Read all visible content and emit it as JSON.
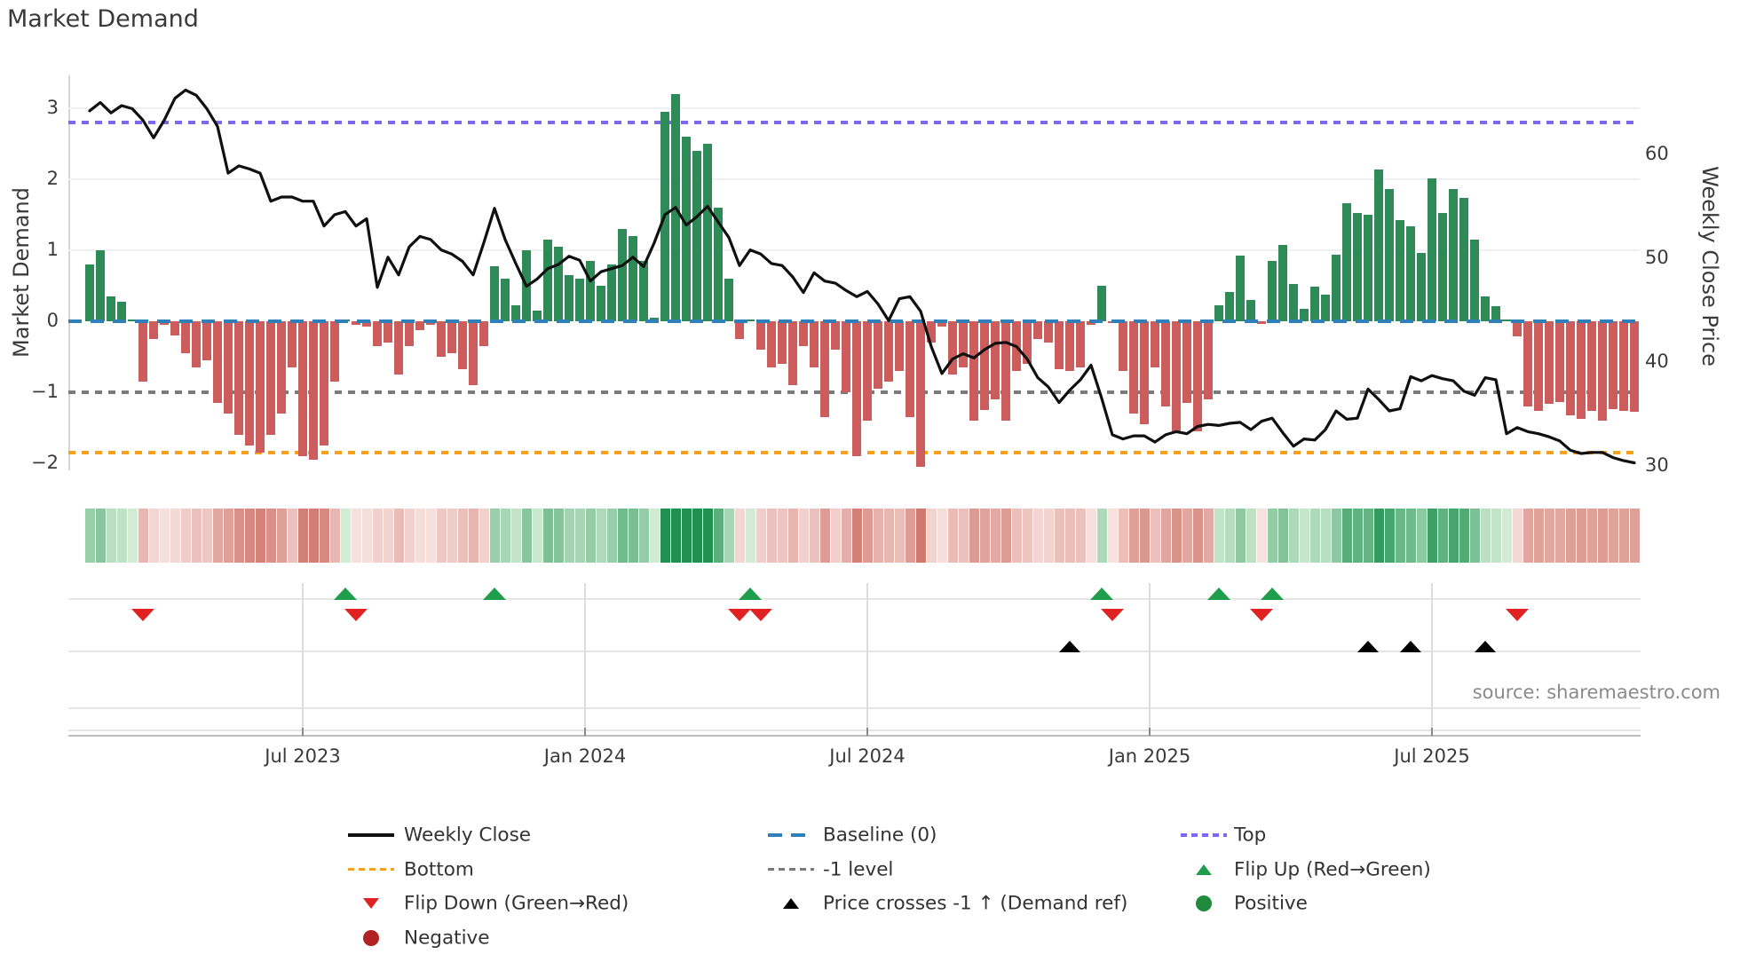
{
  "title": "Market Demand",
  "source": "source: sharemaestro.com",
  "axes": {
    "left_label": "Market Demand",
    "right_label": "Weekly Close Price",
    "left_ticks": [
      3,
      2,
      1,
      0,
      -1,
      -2
    ],
    "right_ticks": [
      60,
      50,
      40,
      30
    ],
    "x_ticks": [
      {
        "label": "Jul 2023",
        "index": 20
      },
      {
        "label": "Jan 2024",
        "index": 46.5
      },
      {
        "label": "Jul 2024",
        "index": 73
      },
      {
        "label": "Jan 2025",
        "index": 99.5
      },
      {
        "label": "Jul 2025",
        "index": 126
      }
    ]
  },
  "colors": {
    "bar_positive": "#2e8b57",
    "bar_negative": "#cd5c5c",
    "price_line": "#101010",
    "baseline": "#2f7fb8",
    "top_line": "#7b68ee",
    "minus1_line": "#7a7a7a",
    "bottom_line": "#f5a11d",
    "flip_up": "#1e9e4a",
    "flip_down": "#e02222",
    "positive_dot": "#208b3d",
    "negative_dot": "#b22222",
    "price_cross": "#000000",
    "heat_green_dark": "#209150",
    "heat_green_light": "#d4ecd6",
    "heat_red_dark": "#c9675c",
    "heat_red_light": "#f7e3e1"
  },
  "legend": {
    "columns": [
      {
        "entries": [
          {
            "swatch": "line-black",
            "label": "Weekly Close",
            "name": "weekly-close"
          },
          {
            "swatch": "dotted-orange",
            "label": "Bottom",
            "name": "bottom"
          },
          {
            "swatch": "triangle-down-red",
            "label": "Flip Down (Green→Red)",
            "name": "flip-down"
          },
          {
            "swatch": "circle-darkred",
            "label": "Negative",
            "name": "negative"
          }
        ]
      },
      {
        "entries": [
          {
            "swatch": "dashed-blue",
            "label": "Baseline (0)",
            "name": "baseline-0"
          },
          {
            "swatch": "dotted-gray",
            "label": "-1 level",
            "name": "minus-1-level"
          },
          {
            "swatch": "triangle-up-black",
            "label": "Price crosses -1 ↑ (Demand ref)",
            "name": "price-crosses-minus-1"
          }
        ]
      },
      {
        "entries": [
          {
            "swatch": "dotted-purple",
            "label": "Top",
            "name": "top"
          },
          {
            "swatch": "triangle-up-green",
            "label": "Flip Up (Red→Green)",
            "name": "flip-up"
          },
          {
            "swatch": "circle-green",
            "label": "Positive",
            "name": "positive"
          }
        ]
      }
    ]
  },
  "chart_data": {
    "type": "combo",
    "title": "Market Demand",
    "xlabel": "",
    "ylabel_left": "Market Demand",
    "ylabel_right": "Weekly Close Price",
    "ylim_left": [
      -2.3,
      3.45
    ],
    "ylim_right": [
      22.6,
      65.9
    ],
    "grid": "horizontal-light",
    "legend_position": "bottom",
    "x_tick_labels": [
      "Jul 2023",
      "Jan 2024",
      "Jul 2024",
      "Jan 2025",
      "Jul 2025"
    ],
    "ref_lines": [
      {
        "name": "top",
        "label": "Top",
        "value": 2.8,
        "axis": "left",
        "style": "dotted",
        "color": "#7b68ee"
      },
      {
        "name": "baseline",
        "label": "Baseline (0)",
        "value": 0,
        "axis": "left",
        "style": "dashed",
        "color": "#2f7fb8"
      },
      {
        "name": "minus1",
        "label": "-1 level",
        "value": -1,
        "axis": "left",
        "style": "dotted",
        "color": "#7a7a7a"
      },
      {
        "name": "bottom",
        "label": "Bottom",
        "value": -1.85,
        "axis": "left",
        "style": "dotted",
        "color": "#f5a11d"
      }
    ],
    "series": [
      {
        "name": "Market Demand",
        "type": "bar",
        "axis": "left",
        "values": [
          0.8,
          1.0,
          0.35,
          0.28,
          0.02,
          -0.85,
          -0.25,
          -0.05,
          -0.2,
          -0.45,
          -0.65,
          -0.55,
          -1.15,
          -1.3,
          -1.6,
          -1.75,
          -1.85,
          -1.6,
          -1.3,
          -0.65,
          -1.9,
          -1.95,
          -1.75,
          -0.85,
          0.03,
          -0.05,
          -0.08,
          -0.35,
          -0.3,
          -0.75,
          -0.35,
          -0.12,
          -0.05,
          -0.5,
          -0.45,
          -0.68,
          -0.9,
          -0.35,
          0.78,
          0.6,
          0.22,
          1.0,
          0.15,
          1.15,
          1.05,
          0.65,
          0.6,
          0.85,
          0.5,
          0.8,
          1.3,
          1.2,
          0.85,
          0.05,
          2.95,
          3.2,
          2.6,
          2.4,
          2.5,
          1.6,
          0.6,
          -0.25,
          0.03,
          -0.4,
          -0.65,
          -0.6,
          -0.9,
          -0.35,
          -0.65,
          -1.35,
          -0.4,
          -1.0,
          -1.9,
          -1.4,
          -0.95,
          -0.85,
          -0.7,
          -1.35,
          -2.05,
          -0.3,
          -0.08,
          -0.75,
          -0.65,
          -1.4,
          -1.25,
          -1.1,
          -1.4,
          -0.7,
          -0.6,
          -0.25,
          -0.3,
          -0.68,
          -0.7,
          -0.65,
          -0.05,
          0.5,
          -0.03,
          -0.7,
          -1.3,
          -1.45,
          -0.65,
          -1.2,
          -1.55,
          -1.15,
          -1.55,
          -1.1,
          0.23,
          0.41,
          0.92,
          0.3,
          -0.04,
          0.85,
          1.07,
          0.52,
          0.18,
          0.49,
          0.38,
          0.94,
          1.66,
          1.53,
          1.5,
          2.14,
          1.86,
          1.43,
          1.34,
          0.96,
          2.01,
          1.53,
          1.86,
          1.74,
          1.15,
          0.35,
          0.21,
          0.02,
          -0.21,
          -1.2,
          -1.26,
          -1.16,
          -1.14,
          -1.32,
          -1.38,
          -1.26,
          -1.4,
          -1.24,
          -1.26,
          -1.28
        ]
      },
      {
        "name": "Weekly Close",
        "type": "line",
        "axis": "right",
        "values": [
          64.2,
          65.0,
          64.0,
          64.7,
          64.4,
          63.3,
          61.6,
          63.3,
          65.4,
          66.2,
          65.7,
          64.4,
          62.7,
          58.2,
          58.9,
          58.6,
          58.2,
          55.5,
          55.9,
          55.9,
          55.5,
          55.5,
          53.1,
          54.2,
          54.5,
          53.1,
          53.8,
          47.2,
          50.1,
          48.4,
          51.1,
          52.1,
          51.8,
          50.8,
          50.4,
          49.7,
          48.4,
          51.5,
          54.8,
          51.8,
          49.5,
          47.3,
          48.0,
          49.0,
          49.4,
          50.2,
          49.8,
          47.8,
          48.7,
          49.0,
          49.3,
          50.1,
          49.2,
          51.5,
          54.2,
          54.9,
          53.2,
          54.0,
          55.0,
          53.5,
          52.0,
          49.3,
          50.8,
          50.4,
          49.5,
          49.3,
          48.2,
          46.7,
          48.6,
          47.8,
          47.6,
          46.9,
          46.3,
          46.8,
          45.6,
          44.0,
          46.1,
          46.3,
          44.9,
          41.5,
          38.9,
          40.3,
          40.8,
          40.4,
          41.2,
          41.8,
          41.9,
          41.5,
          40.3,
          38.5,
          37.6,
          36.1,
          37.3,
          38.3,
          39.7,
          36.5,
          33.0,
          32.6,
          32.9,
          32.9,
          32.3,
          33.0,
          33.3,
          33.1,
          33.8,
          34.0,
          33.9,
          34.1,
          34.2,
          33.5,
          34.3,
          34.6,
          33.2,
          31.9,
          32.6,
          32.5,
          33.5,
          35.3,
          34.5,
          34.6,
          37.4,
          36.4,
          35.3,
          35.5,
          38.6,
          38.2,
          38.7,
          38.4,
          38.2,
          37.2,
          36.8,
          38.5,
          38.3,
          33.1,
          33.7,
          33.3,
          33.1,
          32.8,
          32.4,
          31.5,
          31.2,
          31.3,
          31.3,
          30.8,
          30.5,
          30.3
        ]
      }
    ],
    "heatmap_strip": "sign-and-magnitude of Market Demand bars (green positive, red negative)",
    "markers": {
      "flip_up_indices": [
        24,
        38,
        62,
        95,
        106,
        111
      ],
      "flip_down_indices": [
        5,
        25,
        61,
        63,
        96,
        110,
        134
      ],
      "price_cross_up_indices": [
        92,
        120,
        124,
        131
      ]
    }
  }
}
